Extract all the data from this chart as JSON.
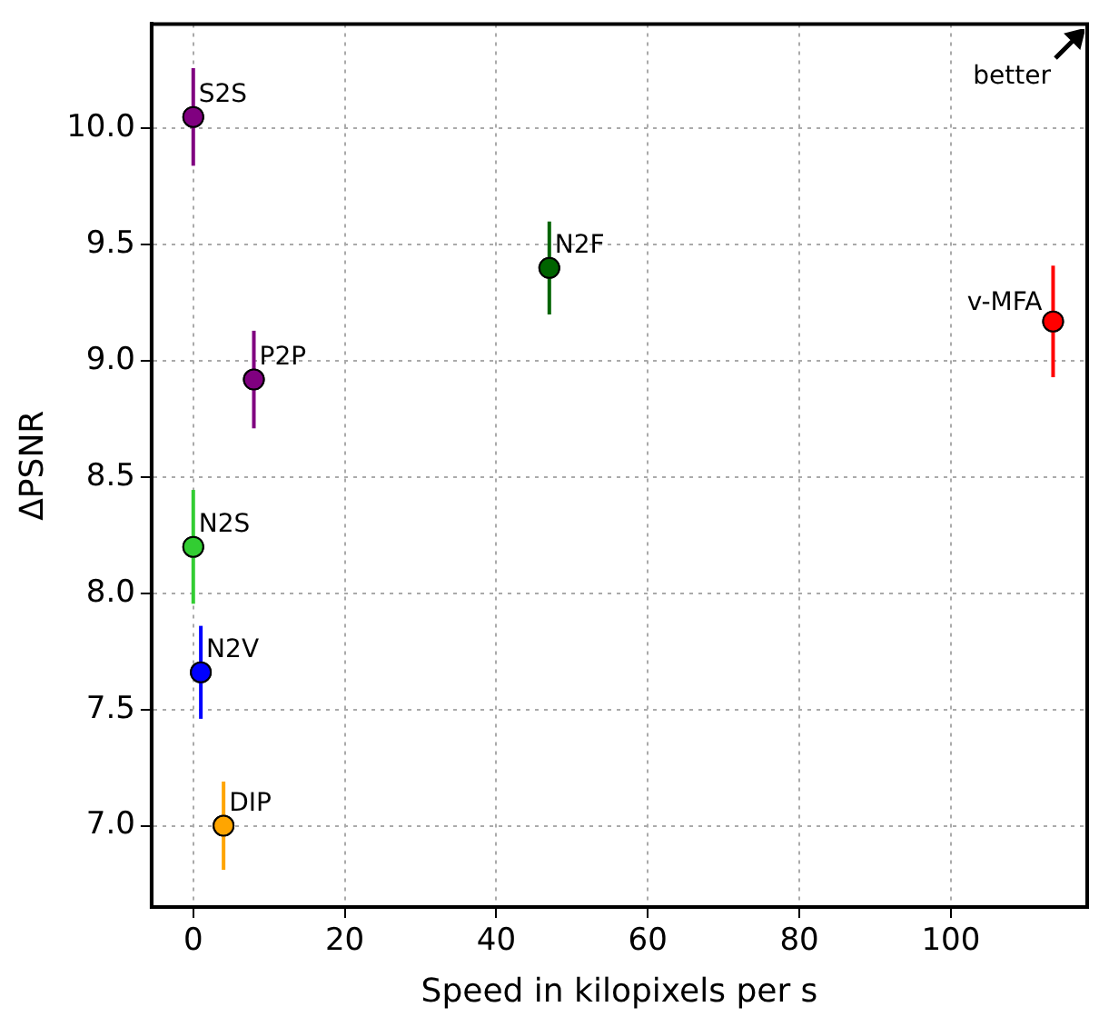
{
  "chart_data": {
    "type": "scatter",
    "xlabel": "Speed in kilopixels per s",
    "ylabel": "ΔPSNR",
    "xlim": [
      -5.5,
      118
    ],
    "xticks": [
      0,
      20,
      40,
      60,
      80,
      100
    ],
    "ylim": [
      6.65,
      10.45
    ],
    "yticks": [
      {
        "value": 7,
        "label": "7.0"
      },
      7.5,
      {
        "value": 8,
        "label": "8.0"
      },
      8.5,
      {
        "value": 9,
        "label": "9.0"
      },
      9.5,
      {
        "value": 10,
        "label": "10.0"
      }
    ],
    "grid": true,
    "legend": false,
    "marker": "circle",
    "annotations": [
      "better"
    ],
    "series": [
      {
        "name": "S2S",
        "color": "#800080",
        "x": [
          0
        ],
        "values": [
          10.05
        ],
        "errors": [
          0.21
        ]
      },
      {
        "name": "P2P",
        "color": "#800080",
        "x": [
          8
        ],
        "values": [
          8.92
        ],
        "errors": [
          0.21
        ]
      },
      {
        "name": "N2S",
        "color": "#32cd32",
        "x": [
          0
        ],
        "values": [
          8.2
        ],
        "errors": [
          0.245
        ]
      },
      {
        "name": "N2V",
        "color": "#0000ff",
        "x": [
          1
        ],
        "values": [
          7.66
        ],
        "errors": [
          0.2
        ]
      },
      {
        "name": "DIP",
        "color": "#ffa500",
        "x": [
          4
        ],
        "values": [
          7.0
        ],
        "errors": [
          0.19
        ]
      },
      {
        "name": "N2F",
        "color": "#006400",
        "x": [
          47
        ],
        "values": [
          9.4
        ],
        "errors": [
          0.2
        ]
      },
      {
        "name": "v-MFA",
        "color": "#ff0000",
        "x": [
          113.5
        ],
        "values": [
          9.17
        ],
        "errors": [
          0.24
        ],
        "xerrors": [
          1.3
        ]
      }
    ]
  }
}
